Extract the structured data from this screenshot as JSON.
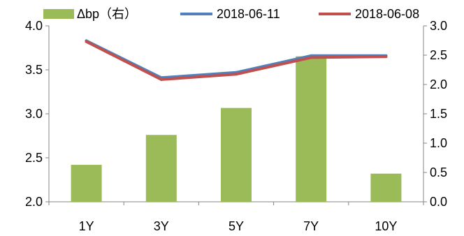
{
  "chart_data": {
    "type": "bar",
    "categories": [
      "1Y",
      "3Y",
      "5Y",
      "7Y",
      "10Y"
    ],
    "series": [
      {
        "name": "Δbp（右）",
        "type": "bar",
        "axis": "right",
        "color": "#9BBB59",
        "values": [
          0.63,
          1.14,
          1.6,
          2.48,
          0.48
        ]
      },
      {
        "name": "2018-06-11",
        "type": "line",
        "axis": "left",
        "color": "#4F81BD",
        "values": [
          3.83,
          3.41,
          3.47,
          3.66,
          3.66
        ]
      },
      {
        "name": "2018-06-08",
        "type": "line",
        "axis": "left",
        "color": "#C0504D",
        "values": [
          3.82,
          3.39,
          3.45,
          3.64,
          3.65
        ]
      }
    ],
    "y_left": {
      "lim": [
        2.0,
        4.0
      ],
      "ticks": [
        "2.0",
        "2.5",
        "3.0",
        "3.5",
        "4.0"
      ]
    },
    "y_right": {
      "lim": [
        0.0,
        3.0
      ],
      "ticks": [
        "0.0",
        "0.5",
        "1.0",
        "1.5",
        "2.0",
        "2.5",
        "3.0"
      ]
    },
    "legend_position": "top",
    "grid": false
  }
}
